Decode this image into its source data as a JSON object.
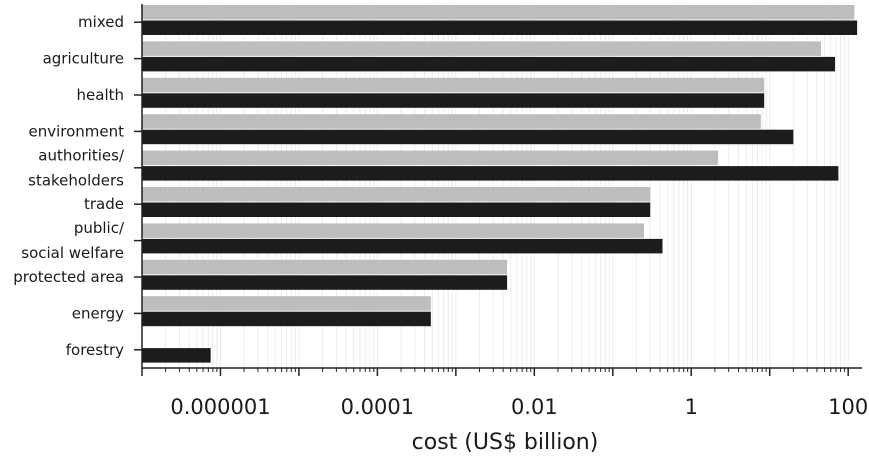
{
  "chart_data": {
    "type": "bar",
    "orientation": "horizontal",
    "xscale": "log",
    "xlim": [
      1e-07,
      150
    ],
    "grid": true,
    "legend": "none",
    "xlabel": "cost (US$ billion)",
    "ylabel": "",
    "title": "",
    "x_ticks": [
      "0.000001",
      "0.0001",
      "0.01",
      "1",
      "100"
    ],
    "categories": [
      [
        "mixed"
      ],
      [
        "agriculture"
      ],
      [
        "health"
      ],
      [
        "environment"
      ],
      [
        "authorities/",
        "stakeholders"
      ],
      [
        "trade"
      ],
      [
        "public/",
        "social welfare"
      ],
      [
        "protected area"
      ],
      [
        "energy"
      ],
      [
        "forestry"
      ]
    ],
    "series": [
      {
        "color": "#bdbdbd",
        "values": [
          120,
          45,
          8.5,
          7.7,
          2.2,
          0.3,
          0.25,
          0.0045,
          0.00048,
          null
        ]
      },
      {
        "color": "#1c1c1c",
        "values": [
          130,
          68,
          8.5,
          20,
          75,
          0.3,
          0.43,
          0.0045,
          0.00048,
          7.5e-07
        ]
      }
    ]
  }
}
